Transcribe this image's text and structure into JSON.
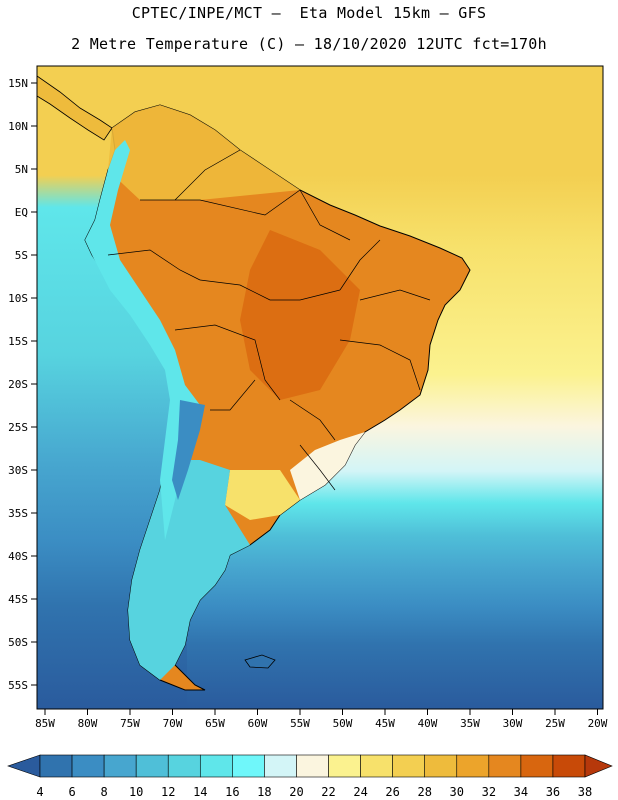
{
  "header": {
    "line1": "CPTEC/INPE/MCT –  Eta Model 15km – GFS",
    "line2": "2 Metre Temperature (C) – 18/10/2020 12UTC fct=170h"
  },
  "axes": {
    "lat_labels": [
      "15N",
      "10N",
      "5N",
      "EQ",
      "5S",
      "10S",
      "15S",
      "20S",
      "25S",
      "30S",
      "35S",
      "40S",
      "45S",
      "50S",
      "55S"
    ],
    "lon_labels": [
      "85W",
      "80W",
      "75W",
      "70W",
      "65W",
      "60W",
      "55W",
      "50W",
      "45W",
      "40W",
      "35W",
      "30W",
      "25W",
      "20W"
    ]
  },
  "colorbar": {
    "levels": [
      "4",
      "6",
      "8",
      "10",
      "12",
      "14",
      "16",
      "18",
      "20",
      "22",
      "24",
      "26",
      "28",
      "30",
      "32",
      "34",
      "36",
      "38"
    ],
    "colors": [
      "#2a5b9d",
      "#3073ae",
      "#3b8dc3",
      "#47a6cf",
      "#4fbfd8",
      "#57d3df",
      "#5fe6ea",
      "#6ff7fa",
      "#d3f5f7",
      "#fbf5df",
      "#fbf28f",
      "#f7e16b",
      "#f3cf51",
      "#eebb3c",
      "#eca42b",
      "#e5871f",
      "#d8660f",
      "#c84a08",
      "#b6380b"
    ]
  },
  "map_colors": {
    "ocean_deep": "#2a5b9d",
    "ocean_mid": "#3b8dc3",
    "ocean_light": "#4fbfd8",
    "ocean_cyan": "#5fe6ea",
    "pale": "#d3f5f7",
    "cream": "#fbf5df",
    "yellow": "#f7e16b",
    "gold": "#f3cf51",
    "orange": "#e5871f",
    "dark_orange": "#d8660f",
    "amber": "#eebb3c"
  }
}
